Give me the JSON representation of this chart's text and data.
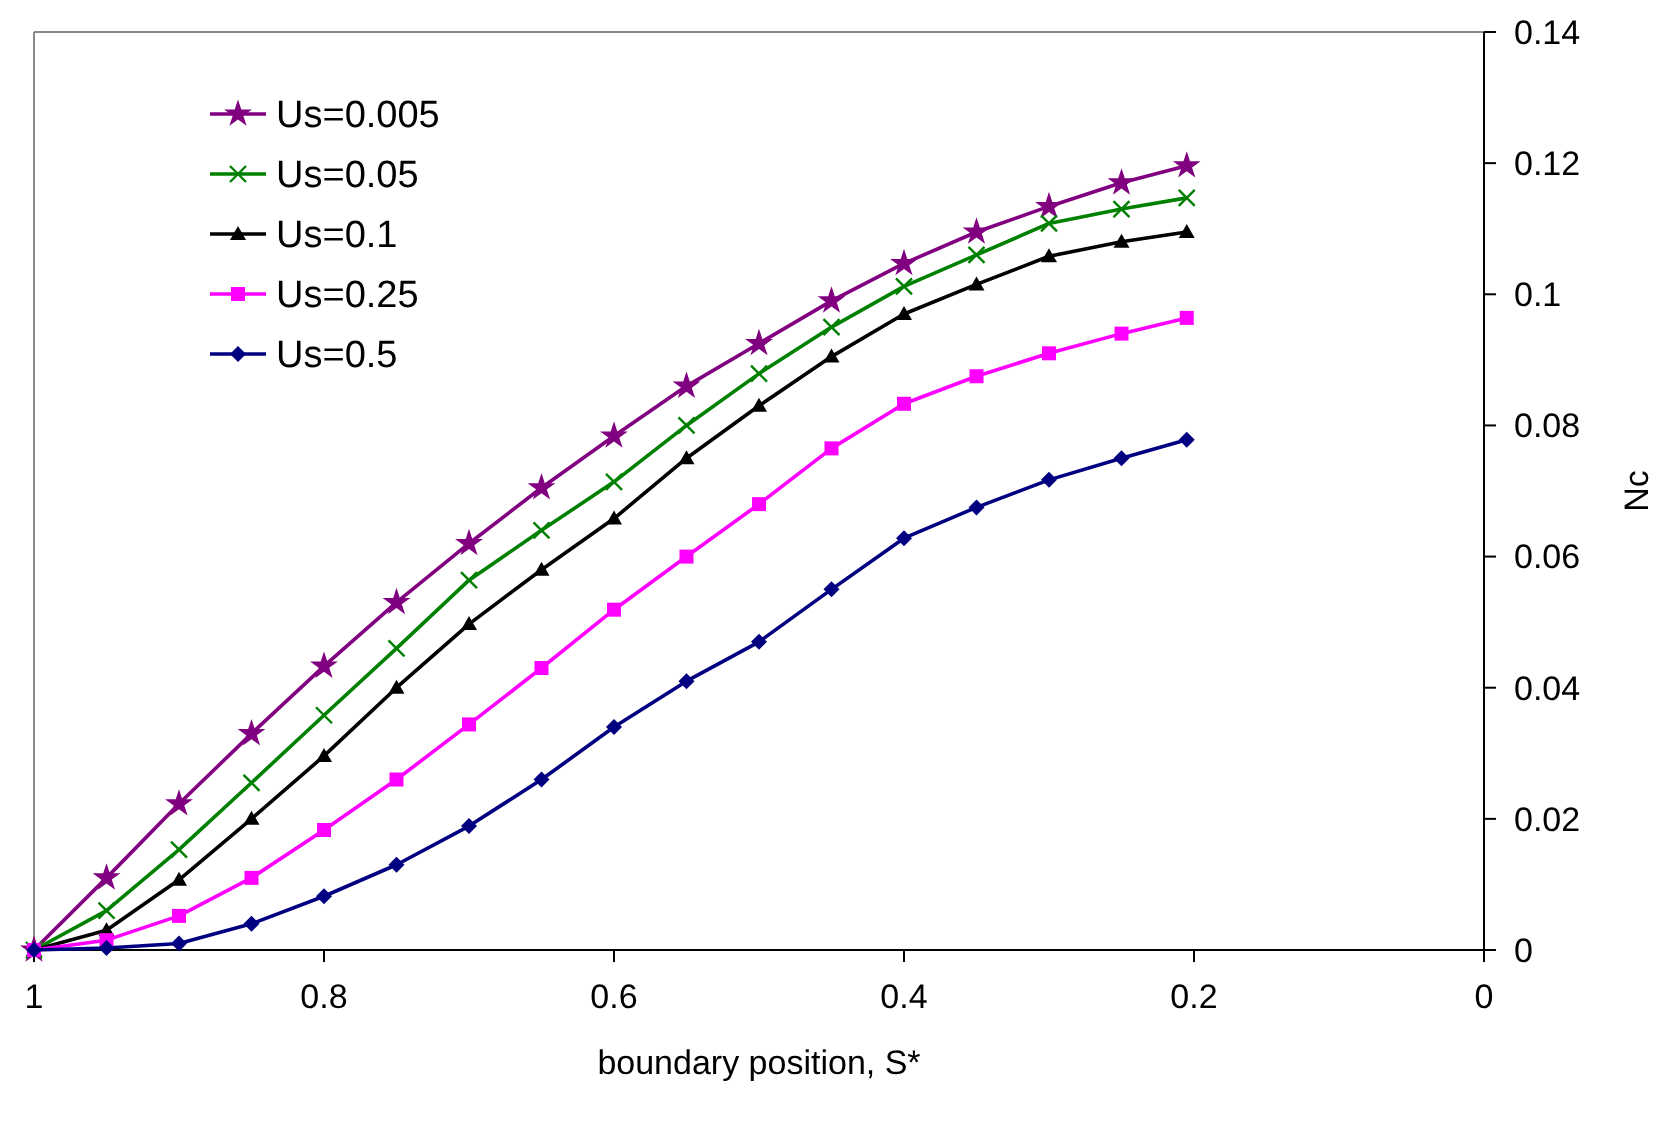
{
  "chart_data": {
    "type": "line",
    "xlabel": "boundary position, S*",
    "ylabel": "Nc",
    "x": [
      1,
      0.95,
      0.9,
      0.85,
      0.8,
      0.75,
      0.7,
      0.65,
      0.6,
      0.55,
      0.5,
      0.45,
      0.4,
      0.35,
      0.3,
      0.25,
      0.205
    ],
    "series": [
      {
        "name": "Us=0.005",
        "color": "#800080",
        "marker": "star",
        "values": [
          0,
          0.011,
          0.0223,
          0.033,
          0.0433,
          0.053,
          0.062,
          0.0705,
          0.0784,
          0.086,
          0.0925,
          0.099,
          0.1047,
          0.1095,
          0.1134,
          0.117,
          0.1196
        ]
      },
      {
        "name": "Us=0.05",
        "color": "#008000",
        "marker": "cross",
        "values": [
          0,
          0.006,
          0.0153,
          0.0255,
          0.0358,
          0.046,
          0.0564,
          0.064,
          0.0714,
          0.08,
          0.0879,
          0.095,
          0.1012,
          0.106,
          0.1108,
          0.113,
          0.1147
        ]
      },
      {
        "name": "Us=0.1",
        "color": "#000000",
        "marker": "triangle",
        "values": [
          0,
          0.003,
          0.0107,
          0.02,
          0.0296,
          0.04,
          0.0497,
          0.058,
          0.0658,
          0.075,
          0.083,
          0.0905,
          0.097,
          0.1015,
          0.1058,
          0.108,
          0.1095
        ]
      },
      {
        "name": "Us=0.25",
        "color": "#ff00ff",
        "marker": "square",
        "values": [
          0,
          0.0015,
          0.0052,
          0.011,
          0.0183,
          0.026,
          0.0344,
          0.043,
          0.0519,
          0.06,
          0.068,
          0.0765,
          0.0833,
          0.0875,
          0.091,
          0.094,
          0.0964
        ]
      },
      {
        "name": "Us=0.5",
        "color": "#000080",
        "marker": "diamond",
        "values": [
          0,
          0.0003,
          0.001,
          0.004,
          0.0082,
          0.013,
          0.0189,
          0.026,
          0.034,
          0.041,
          0.047,
          0.055,
          0.0628,
          0.0675,
          0.0717,
          0.075,
          0.0778
        ]
      }
    ],
    "xlim": [
      1,
      0
    ],
    "xticks": [
      1,
      0.8,
      0.6,
      0.4,
      0.2,
      0
    ],
    "ylim": [
      0,
      0.14
    ],
    "yticks": [
      0,
      0.02,
      0.04,
      0.06,
      0.08,
      0.1,
      0.12,
      0.14
    ],
    "grid": false,
    "legend": "top left",
    "line_style": "solid"
  }
}
